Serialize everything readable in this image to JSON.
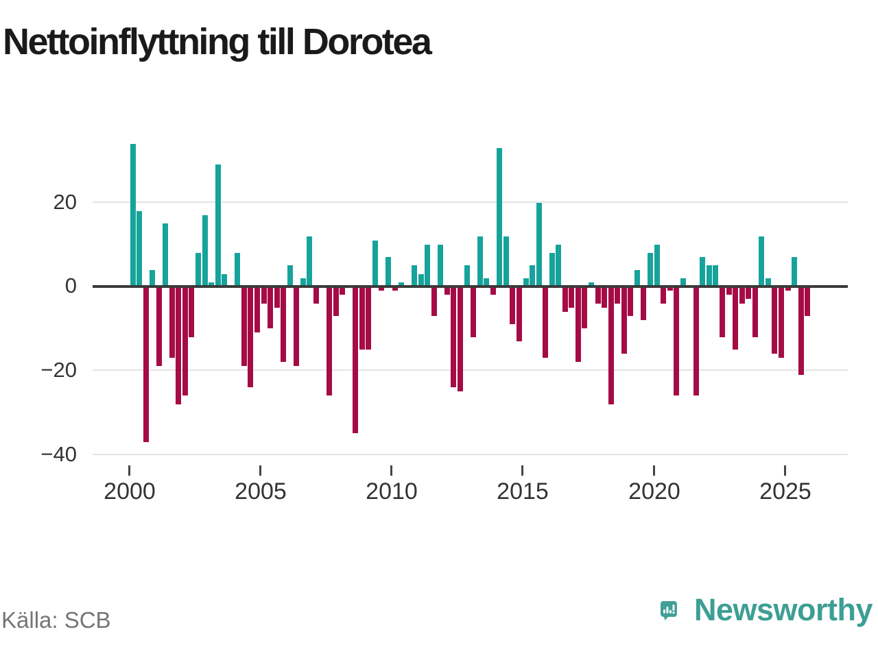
{
  "title": "Nettoinflyttning till Dorotea",
  "source": "Källa: SCB",
  "branding": {
    "wordmark": "Newsworthy"
  },
  "colors": {
    "positive_bar": "#16a39b",
    "negative_bar": "#a50b45",
    "axis": "#3a3a3a",
    "grid": "#e4e4e4",
    "title_text": "#1a1a1a",
    "tick_text": "#333333",
    "source_text": "#757575",
    "logo_teal": "#41a096"
  },
  "chart_data": {
    "type": "bar",
    "title": "Nettoinflyttning till Dorotea",
    "frequency": "quarterly",
    "start": "2000 Q1",
    "end": "2025 Q4",
    "grid": true,
    "ylim": [
      -40,
      36
    ],
    "y_ticks": [
      20,
      0,
      -20,
      -40
    ],
    "y_tick_labels": [
      "20",
      "0",
      "−20",
      "−40"
    ],
    "x_ticks": [
      "2000",
      "2005",
      "2010",
      "2015",
      "2020",
      "2025"
    ],
    "series": [
      {
        "name": "Nettoinflyttning",
        "start_year": 2000,
        "start_quarter": 1,
        "values": [
          34,
          18,
          -37,
          4,
          -19,
          15,
          -17,
          -28,
          -26,
          -12,
          8,
          17,
          1,
          29,
          3,
          0,
          8,
          -19,
          -24,
          -11,
          -4,
          -10,
          -5,
          -18,
          5,
          -19,
          2,
          12,
          -4,
          0,
          -26,
          -7,
          -2,
          0,
          -35,
          -15,
          -15,
          11,
          -1,
          7,
          -1,
          1,
          0,
          5,
          3,
          10,
          -7,
          10,
          -2,
          -24,
          -25,
          5,
          -12,
          12,
          2,
          -2,
          33,
          12,
          -9,
          -13,
          2,
          5,
          20,
          -17,
          8,
          10,
          -6,
          -5,
          -18,
          -10,
          1,
          -4,
          -5,
          -28,
          -4,
          -16,
          -7,
          4,
          -8,
          8,
          10,
          -4,
          -1,
          -26,
          2,
          0,
          -26,
          7,
          5,
          5,
          -12,
          -2,
          -15,
          -4,
          -3,
          -12,
          12,
          2,
          -16,
          -17,
          -1,
          7,
          -21,
          -7
        ]
      }
    ]
  }
}
